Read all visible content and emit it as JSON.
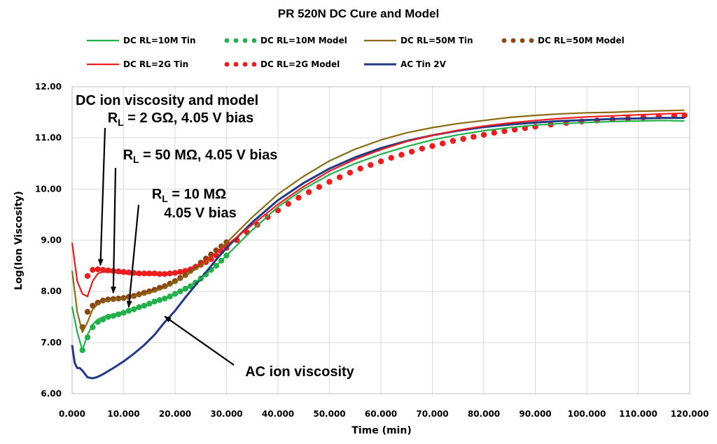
{
  "chart_data": {
    "type": "line",
    "title": "PR 520N DC Cure and Model",
    "xlabel": "Time (min)",
    "ylabel": "Log(Ion Viscosity)",
    "xlim": [
      0,
      120
    ],
    "ylim": [
      6,
      12
    ],
    "x_ticks": [
      0,
      10,
      20,
      30,
      40,
      50,
      60,
      70,
      80,
      90,
      100,
      110,
      120
    ],
    "x_tick_labels": [
      "0.000",
      "10.000",
      "20.000",
      "30.000",
      "40.000",
      "50.000",
      "60.000",
      "70.000",
      "80.000",
      "90.000",
      "100.000",
      "110.000",
      "120.000"
    ],
    "y_ticks": [
      6,
      7,
      8,
      9,
      10,
      11,
      12
    ],
    "y_tick_labels": [
      "6.00",
      "7.00",
      "8.00",
      "9.00",
      "10.00",
      "11.00",
      "12.00"
    ],
    "grid": true,
    "legend_position": "top",
    "series": [
      {
        "name": "DC RL=10M Tin",
        "style": "solid",
        "color": "#22b04b",
        "x": [
          0,
          1,
          2,
          3,
          4,
          5,
          6,
          8,
          10,
          12,
          15,
          18,
          20,
          22,
          25,
          28,
          30,
          35,
          40,
          45,
          50,
          55,
          60,
          65,
          70,
          75,
          80,
          85,
          90,
          95,
          100,
          105,
          110,
          115,
          119
        ],
        "y": [
          7.7,
          7.2,
          6.85,
          7.15,
          7.35,
          7.45,
          7.5,
          7.55,
          7.6,
          7.66,
          7.76,
          7.86,
          7.95,
          8.05,
          8.25,
          8.5,
          8.7,
          9.2,
          9.65,
          10.0,
          10.28,
          10.5,
          10.68,
          10.83,
          10.96,
          11.06,
          11.14,
          11.2,
          11.25,
          11.28,
          11.3,
          11.32,
          11.33,
          11.34,
          11.33
        ]
      },
      {
        "name": "DC RL=10M Model",
        "style": "dotted",
        "color": "#22b04b",
        "x": [
          2,
          3,
          4,
          5,
          6,
          7,
          8,
          9,
          10,
          11,
          12,
          13,
          14,
          15,
          16,
          17,
          18,
          19,
          20,
          21,
          22,
          23,
          24,
          25,
          26,
          27,
          28,
          29,
          30
        ],
        "y": [
          6.85,
          7.1,
          7.3,
          7.4,
          7.45,
          7.5,
          7.52,
          7.55,
          7.58,
          7.62,
          7.65,
          7.69,
          7.72,
          7.76,
          7.8,
          7.83,
          7.86,
          7.9,
          7.95,
          8.0,
          8.05,
          8.1,
          8.17,
          8.25,
          8.33,
          8.42,
          8.5,
          8.6,
          8.7
        ]
      },
      {
        "name": "DC RL=50M Tin",
        "style": "solid",
        "color": "#8b6b12",
        "x": [
          0,
          1,
          2,
          3,
          4,
          5,
          6,
          8,
          10,
          12,
          15,
          18,
          20,
          22,
          25,
          28,
          30,
          35,
          40,
          45,
          50,
          55,
          60,
          65,
          70,
          75,
          80,
          85,
          90,
          95,
          100,
          105,
          110,
          115,
          119
        ],
        "y": [
          8.4,
          7.6,
          7.2,
          7.4,
          7.65,
          7.75,
          7.8,
          7.84,
          7.86,
          7.9,
          7.97,
          8.07,
          8.18,
          8.3,
          8.5,
          8.75,
          8.95,
          9.45,
          9.9,
          10.25,
          10.55,
          10.78,
          10.96,
          11.1,
          11.2,
          11.28,
          11.34,
          11.4,
          11.44,
          11.47,
          11.49,
          11.5,
          11.52,
          11.53,
          11.54
        ]
      },
      {
        "name": "DC RL=50M Model",
        "style": "dotted",
        "color": "#8b4513",
        "x": [
          2,
          3,
          4,
          5,
          6,
          7,
          8,
          9,
          10,
          11,
          12,
          13,
          14,
          15,
          16,
          17,
          18,
          19,
          20,
          21,
          22,
          23,
          24,
          25,
          26,
          27,
          28,
          29,
          30
        ],
        "y": [
          7.3,
          7.6,
          7.72,
          7.78,
          7.82,
          7.84,
          7.85,
          7.86,
          7.87,
          7.89,
          7.91,
          7.94,
          7.97,
          8.0,
          8.03,
          8.07,
          8.1,
          8.15,
          8.2,
          8.26,
          8.32,
          8.4,
          8.48,
          8.56,
          8.64,
          8.72,
          8.8,
          8.88,
          8.96
        ]
      },
      {
        "name": "DC RL=2G Tin",
        "style": "solid",
        "color": "#ee1c1c",
        "x": [
          0,
          1,
          2,
          3,
          4,
          5,
          6,
          8,
          10,
          12,
          15,
          18,
          20,
          22,
          25,
          28,
          30,
          35,
          40,
          45,
          50,
          55,
          60,
          65,
          70,
          75,
          80,
          85,
          90,
          95,
          100,
          105,
          110,
          115,
          119
        ],
        "y": [
          8.95,
          8.2,
          7.95,
          7.9,
          8.2,
          8.35,
          8.38,
          8.37,
          8.35,
          8.33,
          8.32,
          8.32,
          8.35,
          8.4,
          8.55,
          8.75,
          8.9,
          9.3,
          9.7,
          10.05,
          10.35,
          10.58,
          10.77,
          10.93,
          11.05,
          11.15,
          11.23,
          11.29,
          11.34,
          11.38,
          11.41,
          11.43,
          11.45,
          11.47,
          11.48
        ]
      },
      {
        "name": "DC RL=2G Model",
        "style": "dotted",
        "color": "#ee1c1c",
        "x": [
          3,
          4,
          5,
          6,
          7,
          8,
          9,
          10,
          11,
          12,
          13,
          14,
          15,
          16,
          17,
          18,
          19,
          20,
          21,
          22,
          23,
          24,
          25,
          26,
          27,
          28,
          29,
          30,
          32,
          34,
          36,
          38,
          40,
          42,
          44,
          46,
          48,
          50,
          52,
          54,
          56,
          58,
          60,
          62,
          64,
          66,
          68,
          70,
          72,
          74,
          76,
          78,
          80,
          82,
          84,
          86,
          88,
          90,
          93,
          96,
          99,
          102,
          105,
          108,
          111,
          114,
          117,
          119
        ],
        "y": [
          8.3,
          8.42,
          8.43,
          8.42,
          8.41,
          8.4,
          8.39,
          8.38,
          8.37,
          8.36,
          8.35,
          8.35,
          8.35,
          8.35,
          8.34,
          8.34,
          8.35,
          8.36,
          8.38,
          8.4,
          8.43,
          8.47,
          8.52,
          8.57,
          8.63,
          8.7,
          8.78,
          8.85,
          9.0,
          9.15,
          9.3,
          9.45,
          9.58,
          9.71,
          9.83,
          9.94,
          10.04,
          10.14,
          10.23,
          10.32,
          10.4,
          10.47,
          10.54,
          10.61,
          10.67,
          10.73,
          10.79,
          10.84,
          10.89,
          10.94,
          10.98,
          11.02,
          11.06,
          11.1,
          11.13,
          11.16,
          11.19,
          11.22,
          11.26,
          11.29,
          11.32,
          11.34,
          11.36,
          11.38,
          11.4,
          11.42,
          11.43,
          11.44
        ]
      },
      {
        "name": "AC Tin 2V",
        "style": "solid",
        "color": "#203a84",
        "x": [
          0,
          0.5,
          1,
          1.5,
          2,
          3,
          4,
          5,
          6,
          8,
          10,
          12,
          14,
          16,
          18,
          20,
          22,
          25,
          28,
          30,
          35,
          40,
          45,
          50,
          55,
          60,
          65,
          70,
          75,
          80,
          85,
          90,
          95,
          100,
          105,
          110,
          115,
          119
        ],
        "y": [
          6.95,
          6.6,
          6.5,
          6.5,
          6.45,
          6.32,
          6.3,
          6.33,
          6.38,
          6.5,
          6.63,
          6.78,
          6.95,
          7.15,
          7.4,
          7.62,
          7.88,
          8.25,
          8.62,
          8.85,
          9.35,
          9.78,
          10.12,
          10.4,
          10.62,
          10.8,
          10.94,
          11.05,
          11.14,
          11.21,
          11.26,
          11.3,
          11.33,
          11.35,
          11.37,
          11.38,
          11.39,
          11.39
        ]
      }
    ],
    "annotations": [
      {
        "lines": [
          "DC ion viscosity and model",
          "R_L = 2 GΩ, 4.05 V bias"
        ],
        "arrow_to": [
          5.5,
          8.4
        ]
      },
      {
        "lines": [
          "R_L = 50 MΩ, 4.05 V bias"
        ],
        "arrow_to": [
          8,
          7.86
        ]
      },
      {
        "lines": [
          "R_L = 10 MΩ",
          "4.05 V bias"
        ],
        "arrow_to": [
          11,
          7.58
        ]
      },
      {
        "lines": [
          "AC ion viscosity"
        ],
        "arrow_to": [
          18,
          7.4
        ]
      }
    ]
  }
}
